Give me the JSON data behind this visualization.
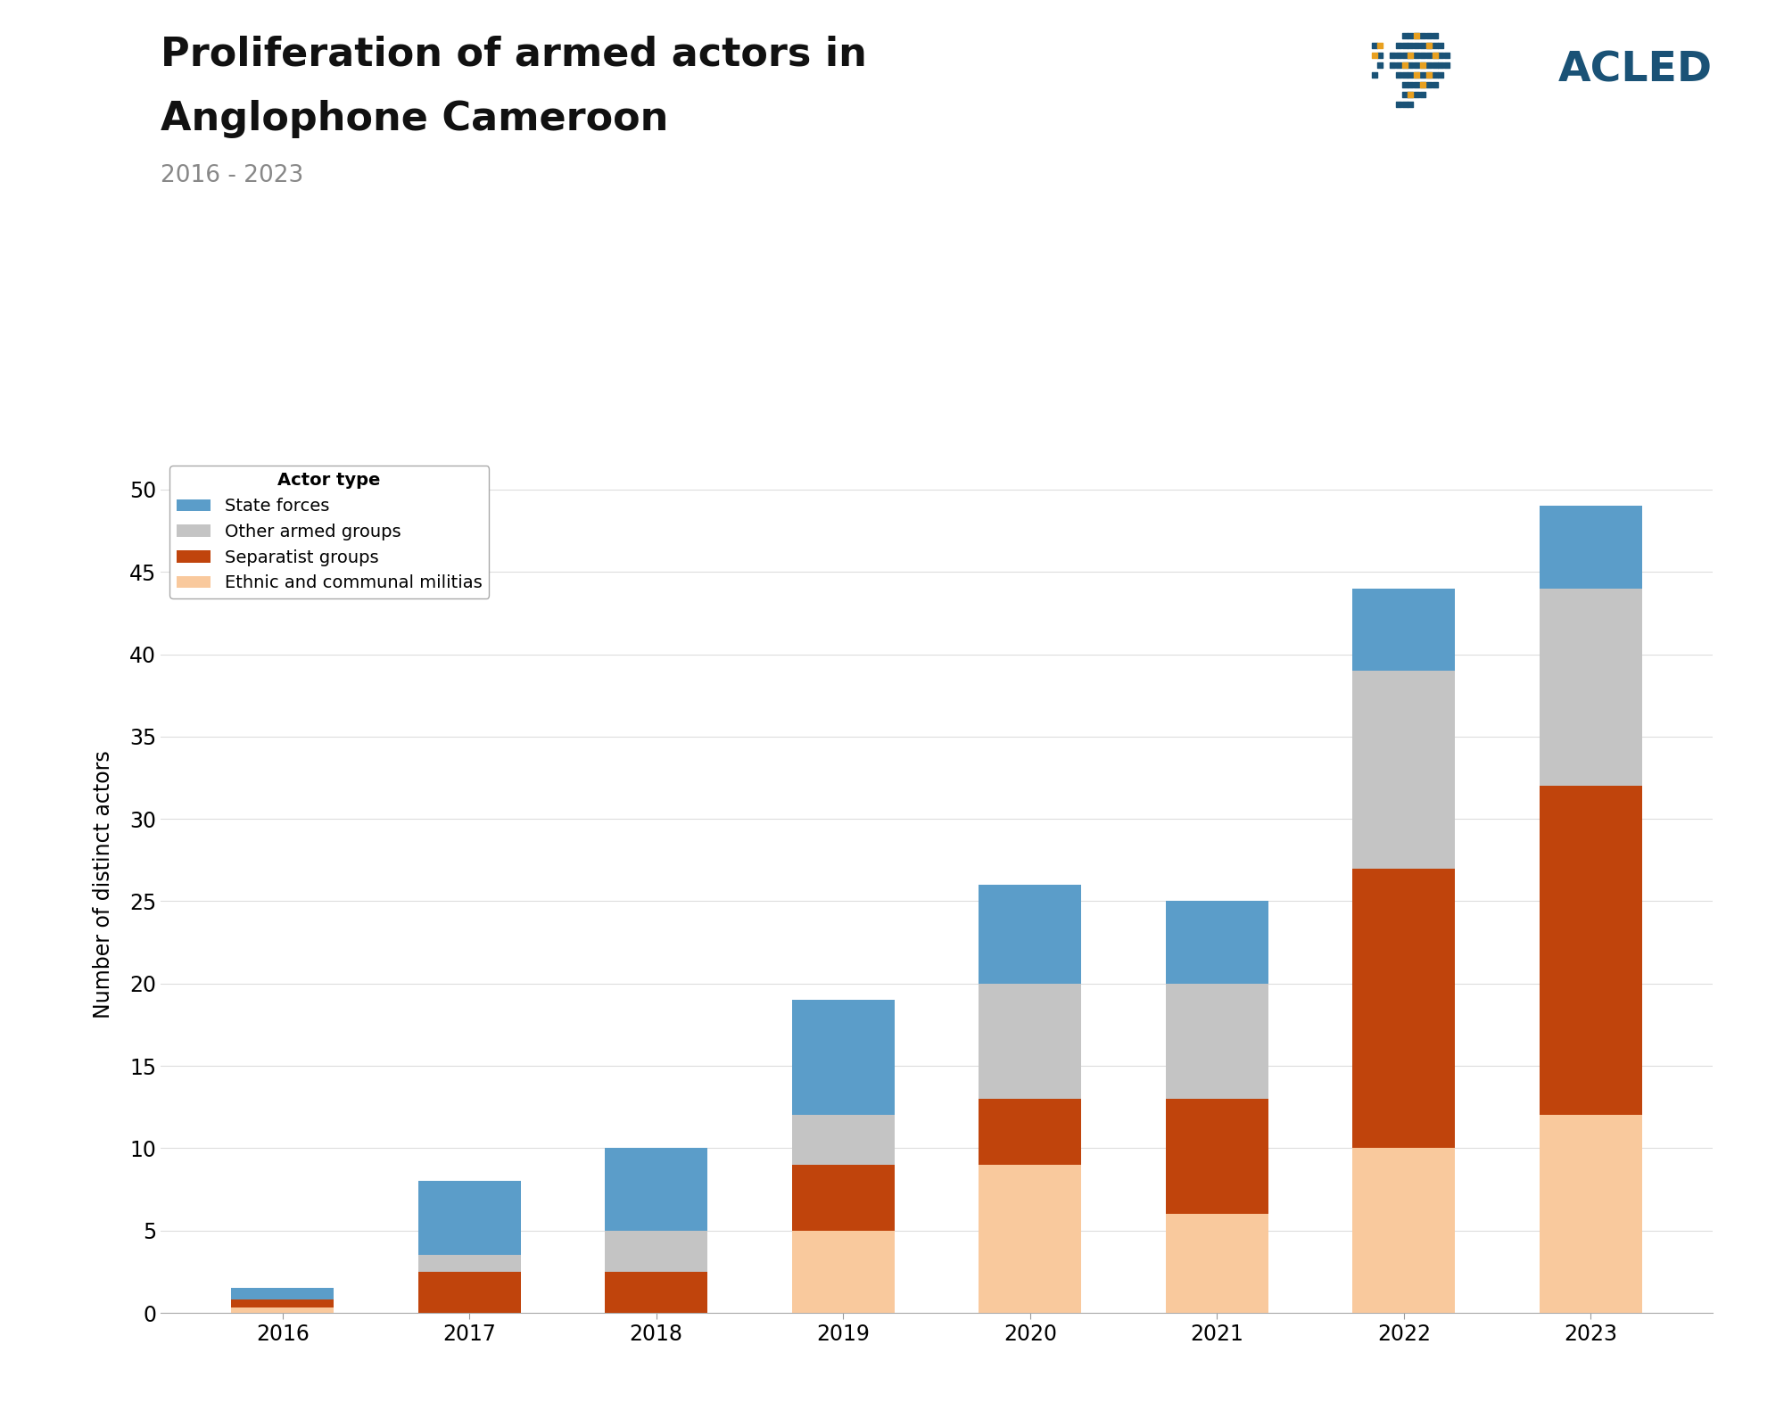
{
  "years": [
    "2016",
    "2017",
    "2018",
    "2019",
    "2020",
    "2021",
    "2022",
    "2023"
  ],
  "ethnic_communal": [
    0.3,
    0,
    0,
    5,
    9,
    6,
    10,
    12
  ],
  "separatist": [
    0.5,
    2.5,
    2.5,
    4,
    4,
    7,
    17,
    20
  ],
  "other_armed": [
    0,
    1,
    2.5,
    3,
    7,
    7,
    12,
    12
  ],
  "state_forces": [
    0.7,
    4.5,
    5,
    7,
    6,
    5,
    5,
    5
  ],
  "colors": {
    "ethnic_communal": "#f9c99d",
    "separatist": "#c0440c",
    "other_armed": "#c4c4c4",
    "state_forces": "#5b9dc9"
  },
  "title_line1": "Proliferation of armed actors in",
  "title_line2": "Anglophone Cameroon",
  "subtitle": "2016 - 2023",
  "ylabel": "Number of distinct actors",
  "legend_title": "Actor type",
  "legend_labels": [
    "State forces",
    "Other armed groups",
    "Separatist groups",
    "Ethnic and communal militias"
  ],
  "ylim": [
    0,
    52
  ],
  "yticks": [
    0,
    5,
    10,
    15,
    20,
    25,
    30,
    35,
    40,
    45,
    50
  ],
  "background_color": "#ffffff",
  "title_fontsize": 32,
  "subtitle_fontsize": 19,
  "ylabel_fontsize": 17,
  "tick_fontsize": 17,
  "legend_fontsize": 14,
  "acled_color": "#1a5276",
  "acled_fontsize": 34
}
